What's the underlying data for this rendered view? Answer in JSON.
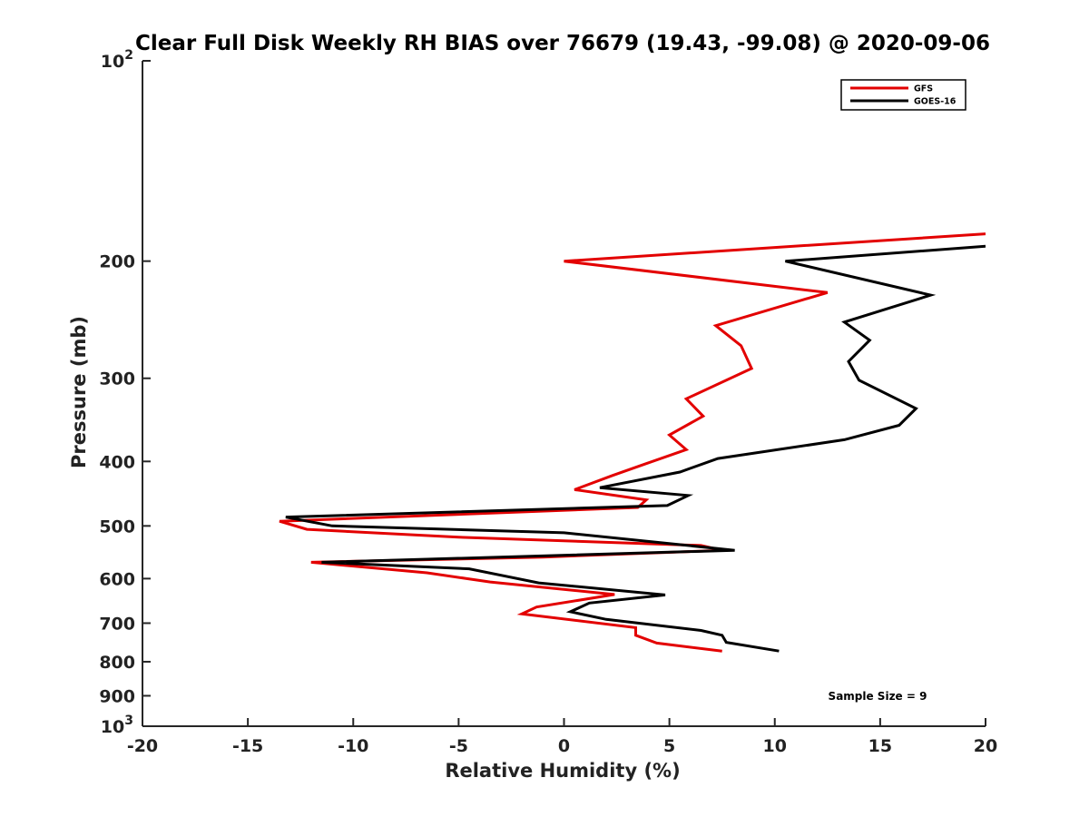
{
  "chart_data": {
    "type": "line",
    "title": "Clear Full Disk Weekly RH BIAS over 76679 (19.43, -99.08) @ 2020-09-06",
    "xlabel": "Relative Humidity (%)",
    "ylabel": "Pressure (mb)",
    "xlim": [
      -20,
      20
    ],
    "ylim": [
      100,
      1000
    ],
    "y_scale": "log",
    "y_reversed": true,
    "grid": false,
    "legend_position": "top-right",
    "x_ticks": [
      "-20",
      "-15",
      "-10",
      "-5",
      "0",
      "5",
      "10",
      "15",
      "20"
    ],
    "y_ticks": [
      {
        "value": 100,
        "base": "10",
        "exp": "2"
      },
      {
        "value": 200,
        "label": "200"
      },
      {
        "value": 300,
        "label": "300"
      },
      {
        "value": 400,
        "label": "400"
      },
      {
        "value": 500,
        "label": "500"
      },
      {
        "value": 600,
        "label": "600"
      },
      {
        "value": 700,
        "label": "700"
      },
      {
        "value": 800,
        "label": "800"
      },
      {
        "value": 900,
        "label": "900"
      },
      {
        "value": 1000,
        "base": "10",
        "exp": "3"
      }
    ],
    "series": [
      {
        "name": "GFS",
        "color": "#e30000",
        "points": [
          [
            20.0,
            182
          ],
          [
            0.0,
            200
          ],
          [
            12.5,
            223
          ],
          [
            7.2,
            250
          ],
          [
            8.4,
            268
          ],
          [
            8.9,
            290
          ],
          [
            5.8,
            322
          ],
          [
            6.6,
            342
          ],
          [
            5.0,
            365
          ],
          [
            5.8,
            384
          ],
          [
            3.9,
            403
          ],
          [
            2.3,
            420
          ],
          [
            0.5,
            441
          ],
          [
            3.9,
            457
          ],
          [
            3.5,
            469
          ],
          [
            -13.5,
            492
          ],
          [
            -12.2,
            506
          ],
          [
            -5.0,
            520
          ],
          [
            6.5,
            535
          ],
          [
            7.5,
            544
          ],
          [
            -1.0,
            557
          ],
          [
            -12.0,
            567
          ],
          [
            -6.5,
            588
          ],
          [
            -3.5,
            607
          ],
          [
            2.4,
            634
          ],
          [
            -1.3,
            662
          ],
          [
            -2.0,
            678
          ],
          [
            3.4,
            711
          ],
          [
            3.4,
            730
          ],
          [
            4.4,
            750
          ],
          [
            7.5,
            771
          ]
        ]
      },
      {
        "name": "GOES-16",
        "color": "#000000",
        "points": [
          [
            20.0,
            190
          ],
          [
            10.5,
            200
          ],
          [
            17.4,
            225
          ],
          [
            13.3,
            247
          ],
          [
            14.5,
            263
          ],
          [
            13.5,
            283
          ],
          [
            14.0,
            302
          ],
          [
            16.7,
            333
          ],
          [
            15.9,
            353
          ],
          [
            13.3,
            371
          ],
          [
            7.3,
            396
          ],
          [
            5.5,
            415
          ],
          [
            1.7,
            438
          ],
          [
            5.9,
            450
          ],
          [
            4.9,
            466
          ],
          [
            -13.2,
            485
          ],
          [
            -11.0,
            500
          ],
          [
            0.0,
            512
          ],
          [
            8.1,
            544
          ],
          [
            -11.5,
            567
          ],
          [
            -4.5,
            580
          ],
          [
            -1.2,
            609
          ],
          [
            4.8,
            635
          ],
          [
            1.2,
            653
          ],
          [
            0.3,
            673
          ],
          [
            2.0,
            691
          ],
          [
            6.5,
            718
          ],
          [
            7.5,
            730
          ],
          [
            7.7,
            748
          ],
          [
            10.2,
            771
          ]
        ]
      }
    ],
    "annotation": "Sample Size = 9"
  }
}
